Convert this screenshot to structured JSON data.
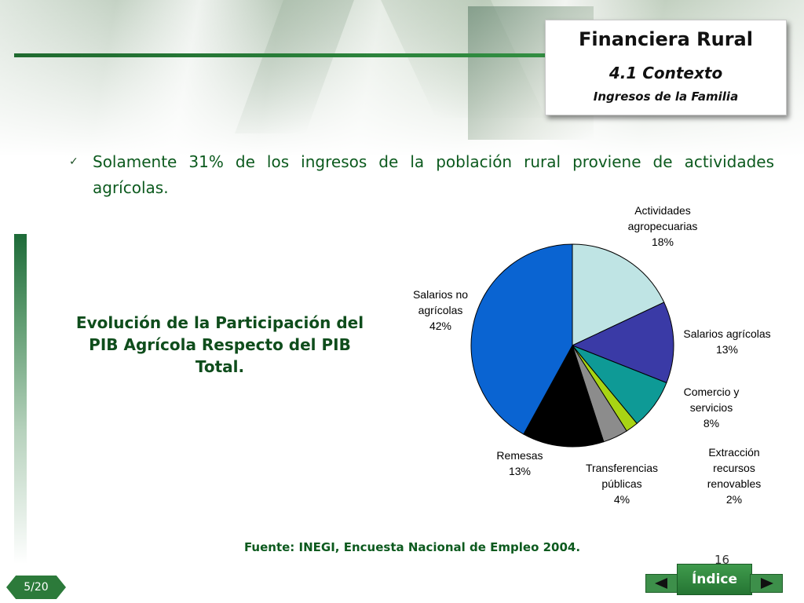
{
  "header": {
    "title": "Financiera Rural",
    "subtitle": "4.1 Contexto",
    "section": "Ingresos de la Familia"
  },
  "bullet": {
    "icon": "checkmark-icon",
    "text": "Solamente 31% de los ingresos de la población rural proviene de actividades agrícolas."
  },
  "subheading": "Evolución de la Participación del PIB Agrícola Respecto del PIB Total.",
  "chart_data": {
    "type": "pie",
    "title": "",
    "slices": [
      {
        "label": "Actividades agropecuarias",
        "value": 18,
        "pct_label": "18%",
        "color": "#bfe4e4"
      },
      {
        "label": "Salarios agrícolas",
        "value": 13,
        "pct_label": "13%",
        "color": "#3a3aa6"
      },
      {
        "label": "Comercio y servicios",
        "value": 8,
        "pct_label": "8%",
        "color": "#0e9a96"
      },
      {
        "label": "Extracción recursos renovables",
        "value": 2,
        "pct_label": "2%",
        "color": "#a8d414"
      },
      {
        "label": "Transferencias públicas",
        "value": 4,
        "pct_label": "4%",
        "color": "#8c8c8c"
      },
      {
        "label": "Remesas",
        "value": 13,
        "pct_label": "13%",
        "color": "#000000"
      },
      {
        "label": "Salarios no agrícolas",
        "value": 42,
        "pct_label": "42%",
        "color": "#0a64d2"
      }
    ],
    "start": "12 o'clock",
    "direction": "clockwise"
  },
  "source": "Fuente: INEGI, Encuesta Nacional de Empleo 2004.",
  "page_number": "16",
  "footer": {
    "slide_counter": "5/20",
    "index_label": "Índice",
    "prev_icon": "arrow-left-icon",
    "next_icon": "arrow-right-icon"
  },
  "colors": {
    "brand_green": "#1f6a2f",
    "text_green": "#0c5a1e"
  }
}
